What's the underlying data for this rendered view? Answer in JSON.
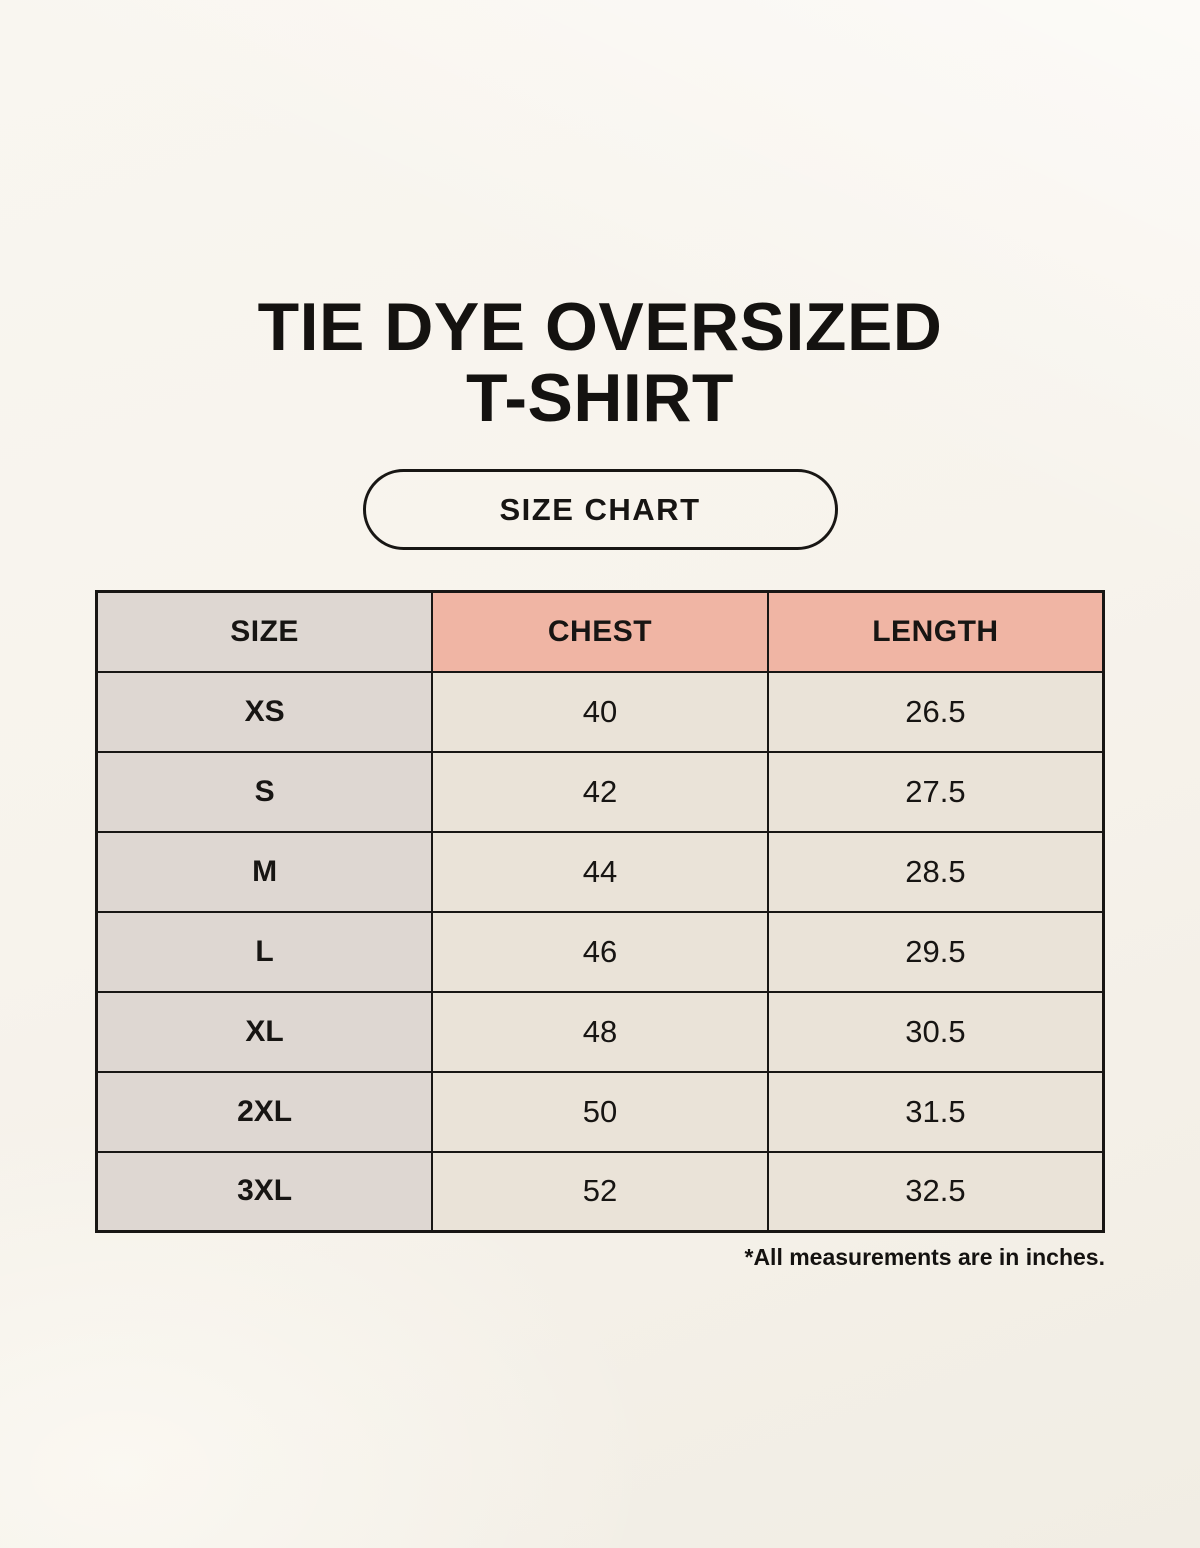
{
  "page": {
    "title_line1": "TIE DYE OVERSIZED",
    "title_line2": "T-SHIRT",
    "badge_label": "SIZE CHART",
    "footnote": "*All measurements are in inches."
  },
  "colors": {
    "background": "#f7f3ec",
    "header_accent": "#f0b5a4",
    "size_column": "#ded7d2",
    "data_cell": "#eae3d8",
    "border": "#181614",
    "text": "#141210"
  },
  "table": {
    "columns": [
      "SIZE",
      "CHEST",
      "LENGTH"
    ],
    "rows": [
      [
        "XS",
        "40",
        "26.5"
      ],
      [
        "S",
        "42",
        "27.5"
      ],
      [
        "M",
        "44",
        "28.5"
      ],
      [
        "L",
        "46",
        "29.5"
      ],
      [
        "XL",
        "48",
        "30.5"
      ],
      [
        "2XL",
        "50",
        "31.5"
      ],
      [
        "3XL",
        "52",
        "32.5"
      ]
    ]
  },
  "chart_data": {
    "type": "table",
    "title": "TIE DYE OVERSIZED T-SHIRT — SIZE CHART",
    "columns": [
      "SIZE",
      "CHEST",
      "LENGTH"
    ],
    "rows": [
      {
        "size": "XS",
        "chest": 40,
        "length": 26.5
      },
      {
        "size": "S",
        "chest": 42,
        "length": 27.5
      },
      {
        "size": "M",
        "chest": 44,
        "length": 28.5
      },
      {
        "size": "L",
        "chest": 46,
        "length": 29.5
      },
      {
        "size": "XL",
        "chest": 48,
        "length": 30.5
      },
      {
        "size": "2XL",
        "chest": 50,
        "length": 31.5
      },
      {
        "size": "3XL",
        "chest": 52,
        "length": 32.5
      }
    ],
    "units": "inches",
    "notes": "*All measurements are in inches."
  }
}
